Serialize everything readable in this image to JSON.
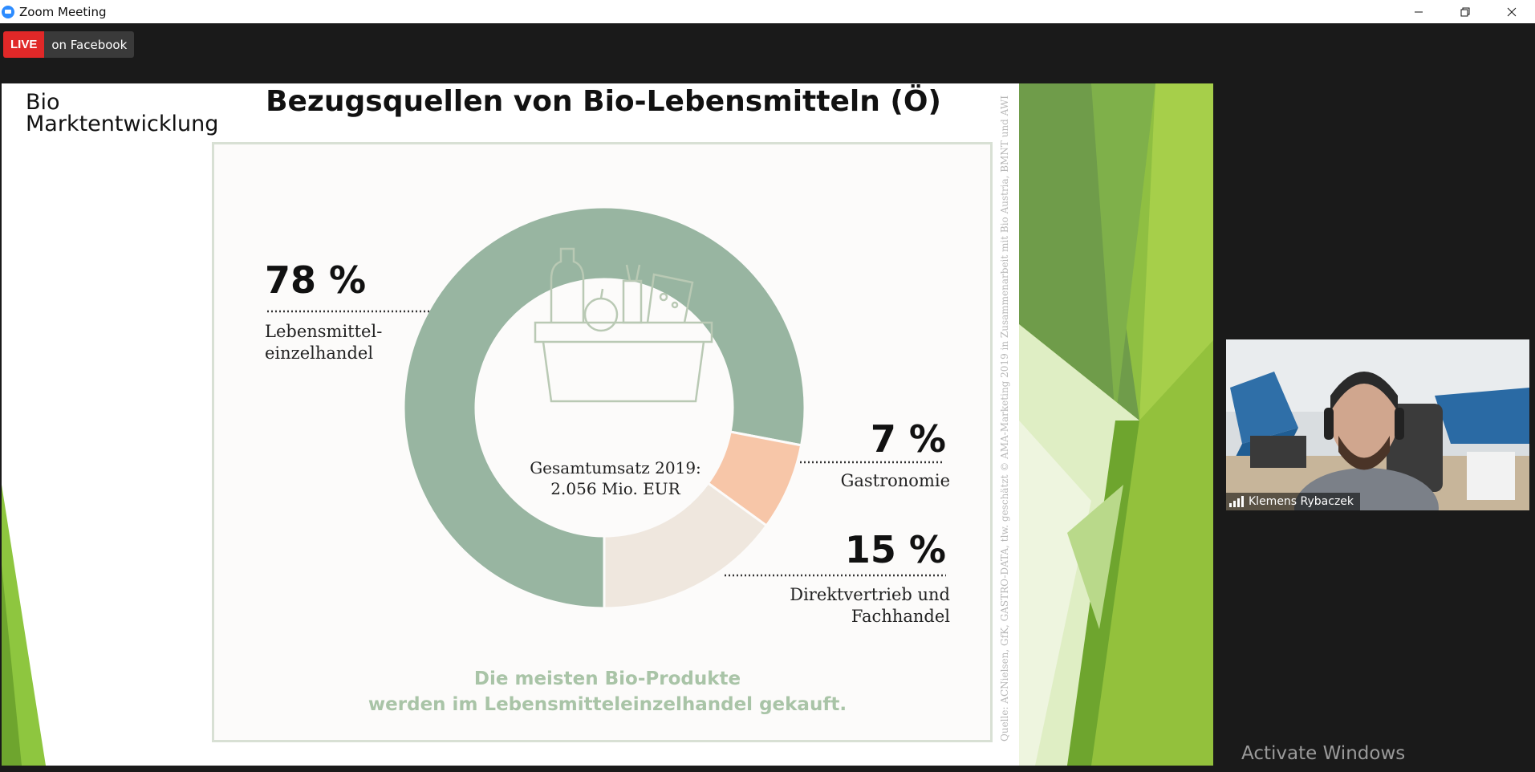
{
  "window": {
    "title": "Zoom Meeting"
  },
  "live": {
    "badge": "LIVE",
    "platform": "on Facebook"
  },
  "slide": {
    "logo_line1": "Bio",
    "logo_line2": "Marktentwicklung",
    "title": "Bezugsquellen von Bio-Lebensmitteln (Ö)",
    "center_line1": "Gesamtumsatz 2019:",
    "center_line2": "2.056 Mio. EUR",
    "footer_line1": "Die meisten Bio-Produkte",
    "footer_line2": "werden im Lebensmitteleinzelhandel gekauft.",
    "source": "Quelle: ACNielsen, GfK, GASTRO-DATA, tlw. geschätzt © AMA-Marketing 2019 in Zusammenarbeit mit  Bio Austria, BMNT und AWI",
    "segments": [
      {
        "pct": "78 %",
        "label_line1": "Lebensmittel-",
        "label_line2": "einzelhandel"
      },
      {
        "pct": "7 %",
        "label_line1": "Gastronomie",
        "label_line2": ""
      },
      {
        "pct": "15 %",
        "label_line1": "Direktvertrieb und",
        "label_line2": "Fachhandel"
      }
    ]
  },
  "chart_data": {
    "type": "pie",
    "categories": [
      "Lebensmitteleinzelhandel",
      "Gastronomie",
      "Direktvertrieb und Fachhandel"
    ],
    "values": [
      78,
      7,
      15
    ],
    "colors": [
      "#98b5a1",
      "#f7c6a8",
      "#efe7de"
    ],
    "title": "Bezugsquellen von Bio-Lebensmitteln (Ö)"
  },
  "participant": {
    "name": "Klemens Rybaczek"
  },
  "watermark": "Activate Windows"
}
